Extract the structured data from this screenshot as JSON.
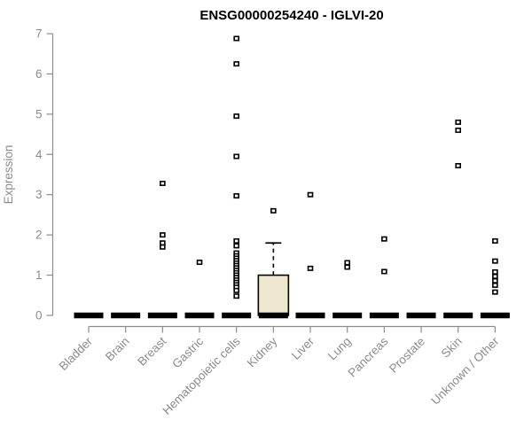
{
  "chart_data": {
    "type": "box",
    "title": "ENSG00000254240 - IGLVI-20",
    "ylabel": "Expression",
    "xlabel": "",
    "ylim": [
      0,
      7
    ],
    "yticks": [
      0,
      1,
      2,
      3,
      4,
      5,
      6,
      7
    ],
    "grid": "off",
    "legend": "none",
    "categories": [
      "Bladder",
      "Brain",
      "Breast",
      "Gastric",
      "Hematopoietic cells",
      "Kidney",
      "Liver",
      "Lung",
      "Pancreas",
      "Prostate",
      "Skin",
      "Unknown / Other"
    ],
    "boxes": [
      {
        "category": "Bladder",
        "median": 0,
        "q1": 0,
        "q3": 0,
        "whisker_low": 0,
        "whisker_high": 0,
        "outliers": []
      },
      {
        "category": "Brain",
        "median": 0,
        "q1": 0,
        "q3": 0,
        "whisker_low": 0,
        "whisker_high": 0,
        "outliers": []
      },
      {
        "category": "Breast",
        "median": 0,
        "q1": 0,
        "q3": 0,
        "whisker_low": 0,
        "whisker_high": 0,
        "outliers": [
          3.28,
          2.0,
          1.8,
          1.7
        ]
      },
      {
        "category": "Gastric",
        "median": 0,
        "q1": 0,
        "q3": 0,
        "whisker_low": 0,
        "whisker_high": 0,
        "outliers": [
          1.32
        ]
      },
      {
        "category": "Hematopoietic cells",
        "median": 0,
        "q1": 0,
        "q3": 0,
        "whisker_low": 0,
        "whisker_high": 0,
        "outliers": [
          6.88,
          6.25,
          4.95,
          3.95,
          2.97,
          1.85,
          1.73,
          1.55,
          1.48,
          1.42,
          1.36,
          1.3,
          1.24,
          1.18,
          1.12,
          1.06,
          1.0,
          0.94,
          0.88,
          0.82,
          0.76,
          0.7,
          0.62,
          0.48
        ]
      },
      {
        "category": "Kidney",
        "median": 0,
        "q1": 0,
        "q3": 1.0,
        "whisker_low": 0,
        "whisker_high": 1.8,
        "outliers": [
          2.6
        ]
      },
      {
        "category": "Liver",
        "median": 0,
        "q1": 0,
        "q3": 0,
        "whisker_low": 0,
        "whisker_high": 0,
        "outliers": [
          3.0,
          1.17
        ]
      },
      {
        "category": "Lung",
        "median": 0,
        "q1": 0,
        "q3": 0,
        "whisker_low": 0,
        "whisker_high": 0,
        "outliers": [
          1.31,
          1.2
        ]
      },
      {
        "category": "Pancreas",
        "median": 0,
        "q1": 0,
        "q3": 0,
        "whisker_low": 0,
        "whisker_high": 0,
        "outliers": [
          1.9,
          1.09
        ]
      },
      {
        "category": "Prostate",
        "median": 0,
        "q1": 0,
        "q3": 0,
        "whisker_low": 0,
        "whisker_high": 0,
        "outliers": []
      },
      {
        "category": "Skin",
        "median": 0,
        "q1": 0,
        "q3": 0,
        "whisker_low": 0,
        "whisker_high": 0,
        "outliers": [
          4.8,
          4.6,
          3.72
        ]
      },
      {
        "category": "Unknown / Other",
        "median": 0,
        "q1": 0,
        "q3": 0,
        "whisker_low": 0,
        "whisker_high": 0,
        "outliers": [
          1.85,
          1.35,
          1.08,
          0.97,
          0.86,
          0.75,
          0.58
        ]
      }
    ],
    "colors": {
      "title": "#000000",
      "axis_text": "#8c8c8c",
      "axis_line": "#8c8c8c",
      "marker": "#000000",
      "marker_fill": "#ffffff",
      "box_fill": "#ede8cf",
      "box_stroke": "#000000",
      "background": "#ffffff"
    }
  }
}
